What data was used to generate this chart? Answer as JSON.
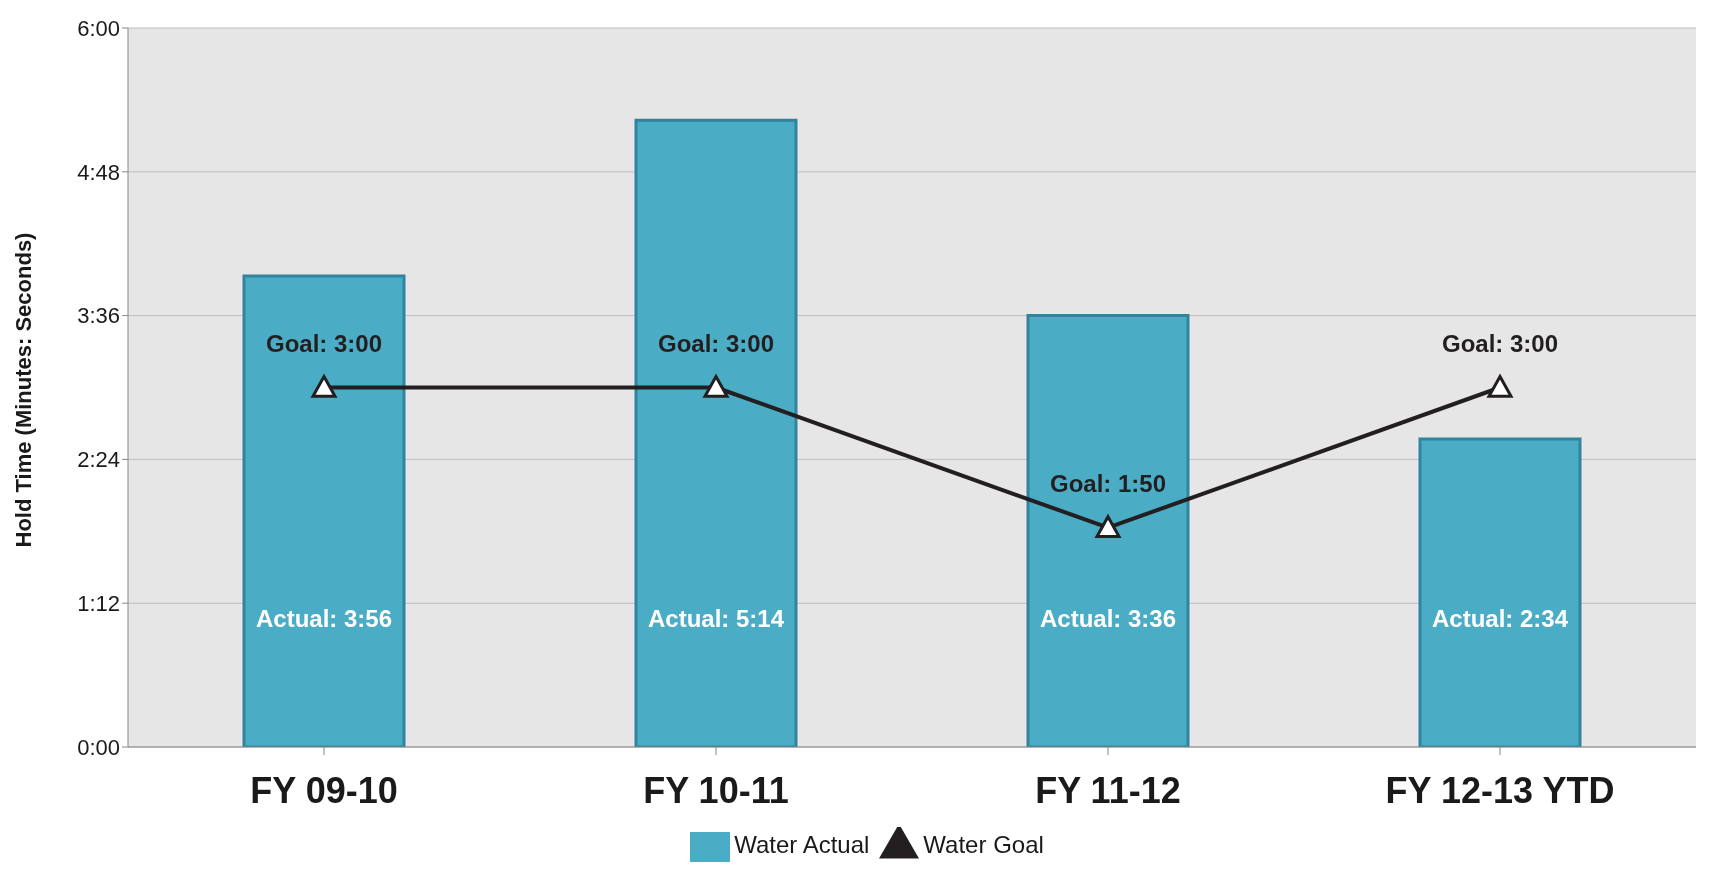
{
  "chart_data": {
    "type": "bar",
    "ylabel": "Hold Time (Minutes: Seconds)",
    "categories": [
      "FY 09-10",
      "FY 10-11",
      "FY 11-12",
      "FY 12-13 YTD"
    ],
    "series": [
      {
        "name": "Water Actual",
        "color": "#4bacc6",
        "values": [
          3.93,
          5.23,
          3.6,
          2.57
        ],
        "value_labels": [
          "Actual: 3:56",
          "Actual: 5:14",
          "Actual: 3:36",
          "Actual: 2:34"
        ]
      },
      {
        "name": "Water Goal",
        "type": "line",
        "color": "#231f20",
        "marker": "triangle",
        "values": [
          3,
          3,
          1.83,
          3
        ],
        "value_labels": [
          "Goal: 3:00",
          "Goal: 3:00",
          "Goal: 1:50",
          "Goal: 3:00"
        ]
      }
    ],
    "ylim": [
      0,
      6
    ],
    "yticks": [
      {
        "value": 0,
        "label": "0:00"
      },
      {
        "value": 1.2,
        "label": "1:12"
      },
      {
        "value": 2.4,
        "label": "2:24"
      },
      {
        "value": 3.6,
        "label": "3:36"
      },
      {
        "value": 4.8,
        "label": "4:48"
      },
      {
        "value": 6,
        "label": "6:00"
      }
    ],
    "grid": "y",
    "legend": "bottom"
  }
}
